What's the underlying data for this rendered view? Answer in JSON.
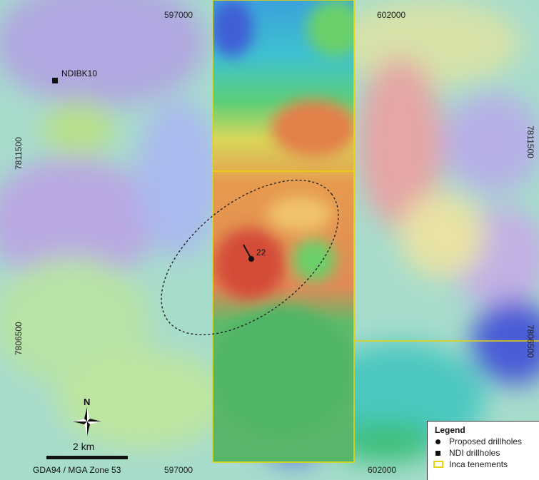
{
  "map": {
    "easting_top_left": "597000",
    "easting_top_right": "602000",
    "easting_bottom_left": "597000",
    "easting_bottom_right": "602000",
    "northing_left_upper": "7811500",
    "northing_left_lower": "7806500",
    "northing_right_upper": "7811500",
    "northing_right_lower": "7806500"
  },
  "drillholes": {
    "ndi_label": "NDIBK10",
    "proposed_label": "22"
  },
  "north_arrow": {
    "letter": "N"
  },
  "scale_bar": {
    "label": "2 km"
  },
  "crs": {
    "label": "GDA94 / MGA Zone 53"
  },
  "legend": {
    "title": "Legend",
    "items": [
      {
        "label": "Proposed drillholes",
        "symbol": "circle",
        "color": "#111111"
      },
      {
        "label": "NDI drillholes",
        "symbol": "square",
        "color": "#111111"
      },
      {
        "label": "Inca tenements",
        "symbol": "outline-rectangle",
        "color": "#e6d40a"
      }
    ]
  },
  "colors": {
    "tenement_outline": "#e6d40a",
    "high_anomaly": "#d9443a",
    "low_anomaly": "#7e8fe0"
  }
}
